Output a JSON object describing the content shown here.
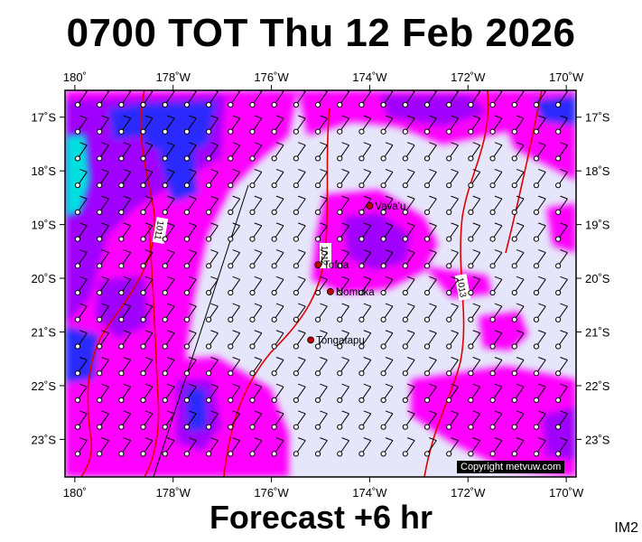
{
  "header": {
    "title": "0700 TOT Thu 12 Feb 2026"
  },
  "footer": {
    "subtitle": "Forecast +6 hr",
    "code": "IM2",
    "copyright": "Copyright metvuw.com"
  },
  "axes": {
    "lon_labels": [
      "180˚",
      "178˚W",
      "176˚W",
      "174˚W",
      "172˚W",
      "170˚W"
    ],
    "lat_labels": [
      "17˚S",
      "18˚S",
      "19˚S",
      "20˚S",
      "21˚S",
      "22˚S",
      "23˚S"
    ]
  },
  "places": [
    {
      "name": "Vava'u",
      "lon": -174.0,
      "lat": -18.65
    },
    {
      "name": "Tofua",
      "lon": -175.05,
      "lat": -19.75
    },
    {
      "name": "Nomuka",
      "lon": -174.8,
      "lat": -20.25
    },
    {
      "name": "Tongatapu",
      "lon": -175.2,
      "lat": -21.15
    }
  ],
  "isobars": [
    {
      "label": "1011"
    },
    {
      "label": "1012"
    },
    {
      "label": "1013"
    }
  ],
  "colors": {
    "background_field": "#e6e6fa",
    "magenta": "#ff00ff",
    "violet": "#a000ff",
    "blue": "#2a2aff",
    "cyan": "#00e0e0",
    "isobar": "#e00000",
    "place_marker": "#c00000"
  }
}
